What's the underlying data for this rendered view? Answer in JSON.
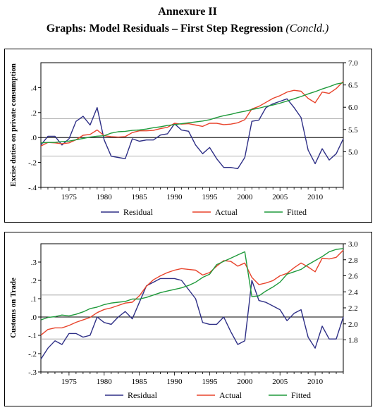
{
  "header": {
    "annex": "Annexure II",
    "title": "Graphs: Model Residuals – First Step Regression",
    "suffix": "(Concld.)"
  },
  "colors": {
    "residual": "#2e2f86",
    "actual": "#e8442c",
    "fitted": "#1f9a3b",
    "ref": "#9a9a9a"
  },
  "chart_data": [
    {
      "type": "line",
      "ylabel_left": "Excise duties on private consumption",
      "x": [
        1971,
        1972,
        1973,
        1974,
        1975,
        1976,
        1977,
        1978,
        1979,
        1980,
        1981,
        1982,
        1983,
        1984,
        1985,
        1986,
        1987,
        1988,
        1989,
        1990,
        1991,
        1992,
        1993,
        1994,
        1995,
        1996,
        1997,
        1998,
        1999,
        2000,
        2001,
        2002,
        2003,
        2004,
        2005,
        2006,
        2007,
        2008,
        2009,
        2010,
        2011,
        2012,
        2013,
        2014
      ],
      "xlim": [
        1971,
        2014
      ],
      "xticks": [
        1975,
        1980,
        1985,
        1990,
        1995,
        2000,
        2005,
        2010
      ],
      "left_axis": {
        "ylim": [
          -0.4,
          0.6
        ],
        "ticks": [
          0.4,
          0.2,
          0.0,
          -0.2,
          -0.4
        ],
        "tick_labels": [
          ".4",
          ".2",
          ".0",
          "-.2",
          "-.4"
        ]
      },
      "right_axis": {
        "ylim": [
          4.2,
          7.0
        ],
        "ticks": [
          5.0,
          5.5,
          6.0,
          6.5,
          7.0
        ],
        "tick_labels": [
          "5.0",
          "5.5",
          "6.0",
          "6.5",
          "7.0"
        ]
      },
      "reference_lines": [
        0.15,
        0.0,
        -0.15
      ],
      "legend": [
        "Residual",
        "Actual",
        "Fitted"
      ],
      "legend_position": "bottom",
      "series": [
        {
          "name": "Residual",
          "axis": "left",
          "values": [
            -0.06,
            0.01,
            0.01,
            -0.06,
            -0.01,
            0.13,
            0.17,
            0.1,
            0.24,
            -0.02,
            -0.15,
            -0.16,
            -0.17,
            -0.01,
            -0.03,
            -0.02,
            -0.02,
            0.02,
            0.03,
            0.11,
            0.06,
            0.05,
            -0.06,
            -0.13,
            -0.08,
            -0.17,
            -0.24,
            -0.24,
            -0.25,
            -0.16,
            0.13,
            0.14,
            0.24,
            0.27,
            0.29,
            0.31,
            0.24,
            0.16,
            -0.1,
            -0.21,
            -0.09,
            -0.18,
            -0.13,
            -0.01
          ]
        },
        {
          "name": "Actual",
          "axis": "right",
          "values": [
            5.13,
            5.21,
            5.2,
            5.18,
            5.2,
            5.27,
            5.37,
            5.39,
            5.49,
            5.36,
            5.34,
            5.33,
            5.34,
            5.43,
            5.47,
            5.47,
            5.48,
            5.52,
            5.55,
            5.64,
            5.62,
            5.63,
            5.6,
            5.57,
            5.64,
            5.64,
            5.61,
            5.62,
            5.65,
            5.72,
            5.96,
            6.02,
            6.11,
            6.2,
            6.26,
            6.34,
            6.38,
            6.36,
            6.2,
            6.1,
            6.34,
            6.31,
            6.42,
            6.58
          ]
        },
        {
          "name": "Fitted",
          "axis": "right",
          "values": [
            5.2,
            5.21,
            5.21,
            5.23,
            5.24,
            5.27,
            5.3,
            5.33,
            5.35,
            5.36,
            5.42,
            5.45,
            5.46,
            5.48,
            5.49,
            5.51,
            5.54,
            5.56,
            5.59,
            5.61,
            5.63,
            5.65,
            5.67,
            5.69,
            5.72,
            5.77,
            5.81,
            5.84,
            5.88,
            5.91,
            5.95,
            5.98,
            6.02,
            6.05,
            6.09,
            6.14,
            6.19,
            6.24,
            6.3,
            6.35,
            6.41,
            6.46,
            6.52,
            6.55
          ]
        }
      ]
    },
    {
      "type": "line",
      "ylabel_left": "Customs on Trade",
      "x": [
        1971,
        1972,
        1973,
        1974,
        1975,
        1976,
        1977,
        1978,
        1979,
        1980,
        1981,
        1982,
        1983,
        1984,
        1985,
        1986,
        1987,
        1988,
        1989,
        1990,
        1991,
        1992,
        1993,
        1994,
        1995,
        1996,
        1997,
        1998,
        1999,
        2000,
        2001,
        2002,
        2003,
        2004,
        2005,
        2006,
        2007,
        2008,
        2009,
        2010,
        2011,
        2012,
        2013,
        2014
      ],
      "xlim": [
        1971,
        2014
      ],
      "xticks": [
        1975,
        1980,
        1985,
        1990,
        1995,
        2000,
        2005,
        2010
      ],
      "left_axis": {
        "ylim": [
          -0.3,
          0.4
        ],
        "ticks": [
          0.3,
          0.2,
          0.1,
          0.0,
          -0.1,
          -0.2,
          -0.3
        ],
        "tick_labels": [
          ".3",
          ".2",
          ".1",
          ".0",
          "-.1",
          "-.2",
          "-.3"
        ]
      },
      "right_axis": {
        "ylim": [
          1.4,
          3.0
        ],
        "ticks": [
          1.8,
          2.0,
          2.2,
          2.4,
          2.6,
          2.8,
          3.0
        ],
        "tick_labels": [
          "1.8",
          "2.0",
          "2.2",
          "2.4",
          "2.6",
          "2.8",
          "3.0"
        ]
      },
      "reference_lines": [
        0.12,
        0.0,
        -0.12
      ],
      "legend": [
        "Residual",
        "Actual",
        "Fitted"
      ],
      "legend_position": "bottom",
      "series": [
        {
          "name": "Residual",
          "axis": "left",
          "values": [
            -0.23,
            -0.17,
            -0.13,
            -0.15,
            -0.09,
            -0.09,
            -0.11,
            -0.1,
            0.0,
            -0.03,
            -0.04,
            0.0,
            0.03,
            -0.01,
            0.08,
            0.17,
            0.19,
            0.21,
            0.21,
            0.21,
            0.2,
            0.15,
            0.1,
            -0.03,
            -0.04,
            -0.04,
            0.0,
            -0.08,
            -0.15,
            -0.13,
            0.2,
            0.09,
            0.08,
            0.06,
            0.04,
            -0.02,
            0.02,
            0.04,
            -0.11,
            -0.17,
            -0.05,
            -0.12,
            -0.12,
            0.0
          ]
        },
        {
          "name": "Actual",
          "axis": "right",
          "values": [
            1.86,
            1.93,
            1.95,
            1.95,
            1.98,
            2.02,
            2.05,
            2.08,
            2.14,
            2.18,
            2.2,
            2.23,
            2.26,
            2.27,
            2.35,
            2.47,
            2.55,
            2.6,
            2.64,
            2.67,
            2.69,
            2.68,
            2.67,
            2.61,
            2.64,
            2.72,
            2.79,
            2.78,
            2.72,
            2.76,
            2.58,
            2.49,
            2.51,
            2.54,
            2.6,
            2.63,
            2.7,
            2.76,
            2.71,
            2.65,
            2.82,
            2.81,
            2.83,
            2.92
          ]
        },
        {
          "name": "Fitted",
          "axis": "right",
          "values": [
            2.05,
            2.08,
            2.09,
            2.11,
            2.1,
            2.12,
            2.15,
            2.19,
            2.21,
            2.24,
            2.26,
            2.27,
            2.28,
            2.31,
            2.31,
            2.33,
            2.36,
            2.39,
            2.41,
            2.43,
            2.45,
            2.48,
            2.52,
            2.58,
            2.62,
            2.74,
            2.78,
            2.82,
            2.86,
            2.9,
            2.34,
            2.35,
            2.41,
            2.46,
            2.52,
            2.62,
            2.65,
            2.68,
            2.74,
            2.79,
            2.84,
            2.9,
            2.93,
            2.94
          ]
        }
      ]
    }
  ]
}
